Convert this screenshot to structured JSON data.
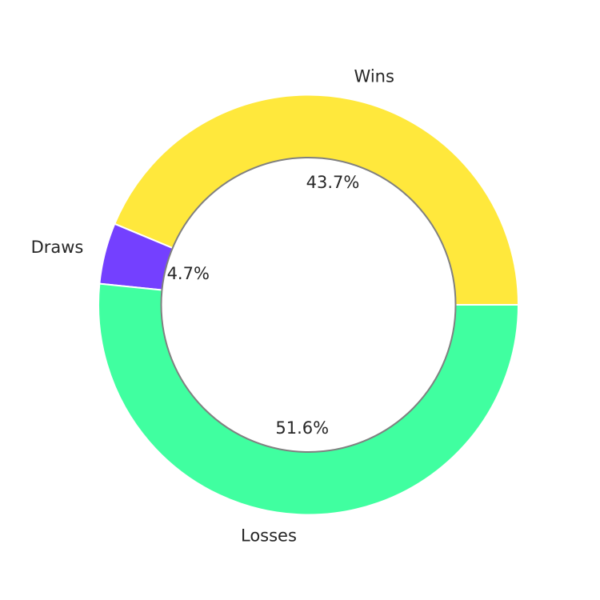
{
  "chart_data": {
    "type": "pie",
    "donut": true,
    "title": "",
    "categories": [
      "Wins",
      "Draws",
      "Losses"
    ],
    "values": [
      43.7,
      4.7,
      51.6
    ],
    "value_labels": [
      "43.7%",
      "4.7%",
      "51.6%"
    ],
    "colors": [
      "#ffe83c",
      "#7440ff",
      "#40ffa0"
    ],
    "center_circle_color": "#ffffff",
    "center_circle_edge_color": "#808080",
    "start_angle_deg": 0,
    "direction": "counterclockwise",
    "legend": "none"
  }
}
